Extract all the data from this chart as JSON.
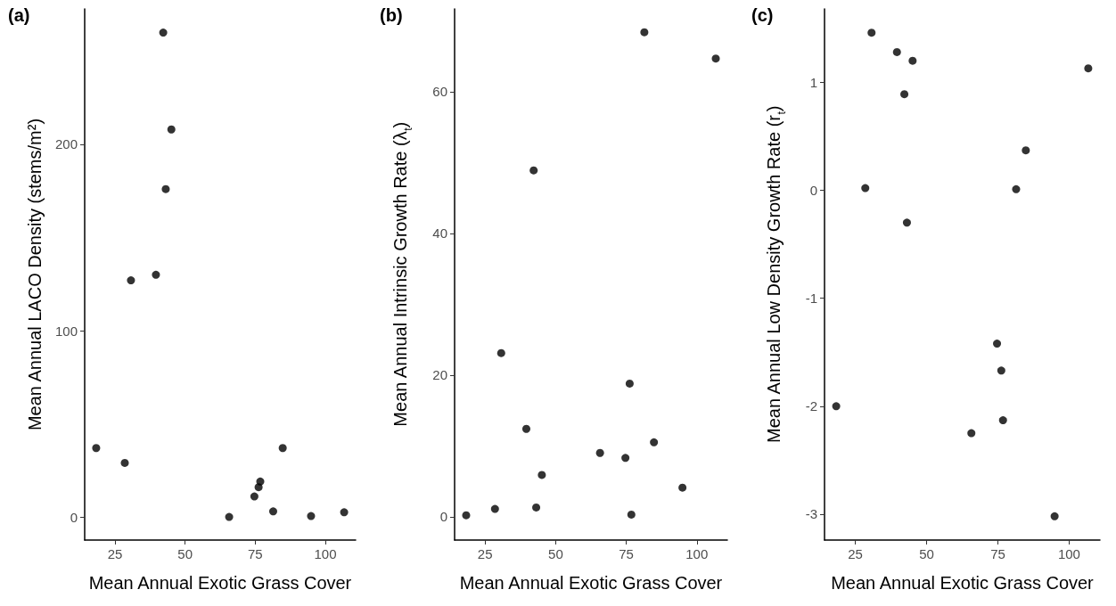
{
  "chart_data": [
    {
      "type": "scatter",
      "title": "(a)",
      "xlabel": "Mean Annual Exotic Grass Cover",
      "ylabel": "Mean Annual LACO Density (stems/m²)",
      "marker": "circle",
      "grid": false,
      "xlim": [
        14.2,
        110.8
      ],
      "xticks": [
        25,
        50,
        75,
        100
      ],
      "ylim": [
        -12.4,
        272.7
      ],
      "yticks": [
        0,
        100,
        200
      ],
      "series": [
        {
          "color": "#000000",
          "x": [
            18.3,
            28.5,
            30.7,
            39.6,
            42.2,
            43.1,
            45.1,
            65.7,
            74.7,
            76.2,
            76.8,
            81.4,
            84.8,
            94.9,
            106.7
          ],
          "values": [
            37,
            29,
            127,
            130,
            260,
            176,
            208,
            0,
            11,
            16,
            19,
            3,
            37,
            0.5,
            2.5
          ]
        }
      ]
    },
    {
      "type": "scatter",
      "title": "(b)",
      "xlabel": "Mean Annual Exotic Grass Cover",
      "ylabel": "Mean Annual Intrinsic Growth Rate (λ$_{t}$)",
      "marker": "circle",
      "grid": false,
      "xlim": [
        14.2,
        110.8
      ],
      "xticks": [
        25,
        50,
        75,
        100
      ],
      "ylim": [
        -3.3,
        71.7
      ],
      "yticks": [
        0,
        20,
        40,
        60
      ],
      "series": [
        {
          "color": "#000000",
          "x": [
            18.3,
            28.5,
            30.7,
            39.6,
            42.2,
            43.1,
            45.1,
            65.7,
            74.7,
            76.2,
            76.8,
            81.4,
            84.8,
            94.9,
            106.7
          ],
          "values": [
            0.2,
            1.1,
            23.1,
            12.4,
            48.9,
            1.3,
            5.9,
            9.0,
            8.3,
            18.8,
            0.3,
            68.4,
            10.5,
            4.1,
            64.7
          ]
        }
      ]
    },
    {
      "type": "scatter",
      "title": "(c)",
      "xlabel": "Mean Annual Exotic Grass Cover",
      "ylabel": "Mean Annual Low Density Growth Rate (r$_{t}$)",
      "marker": "circle",
      "grid": false,
      "xlim": [
        14.2,
        110.8
      ],
      "xticks": [
        25,
        50,
        75,
        100
      ],
      "ylim": [
        -3.24,
        1.68
      ],
      "yticks": [
        -3,
        -2,
        -1,
        0,
        1
      ],
      "series": [
        {
          "color": "#000000",
          "x": [
            18.3,
            28.5,
            30.7,
            39.6,
            42.2,
            43.1,
            45.1,
            65.7,
            74.7,
            76.2,
            76.8,
            81.4,
            84.8,
            94.9,
            106.7
          ],
          "values": [
            -2.0,
            0.02,
            1.46,
            1.28,
            0.89,
            -0.3,
            1.2,
            -2.25,
            -1.42,
            -1.67,
            -2.13,
            0.01,
            0.37,
            -3.02,
            1.13
          ]
        }
      ]
    }
  ]
}
